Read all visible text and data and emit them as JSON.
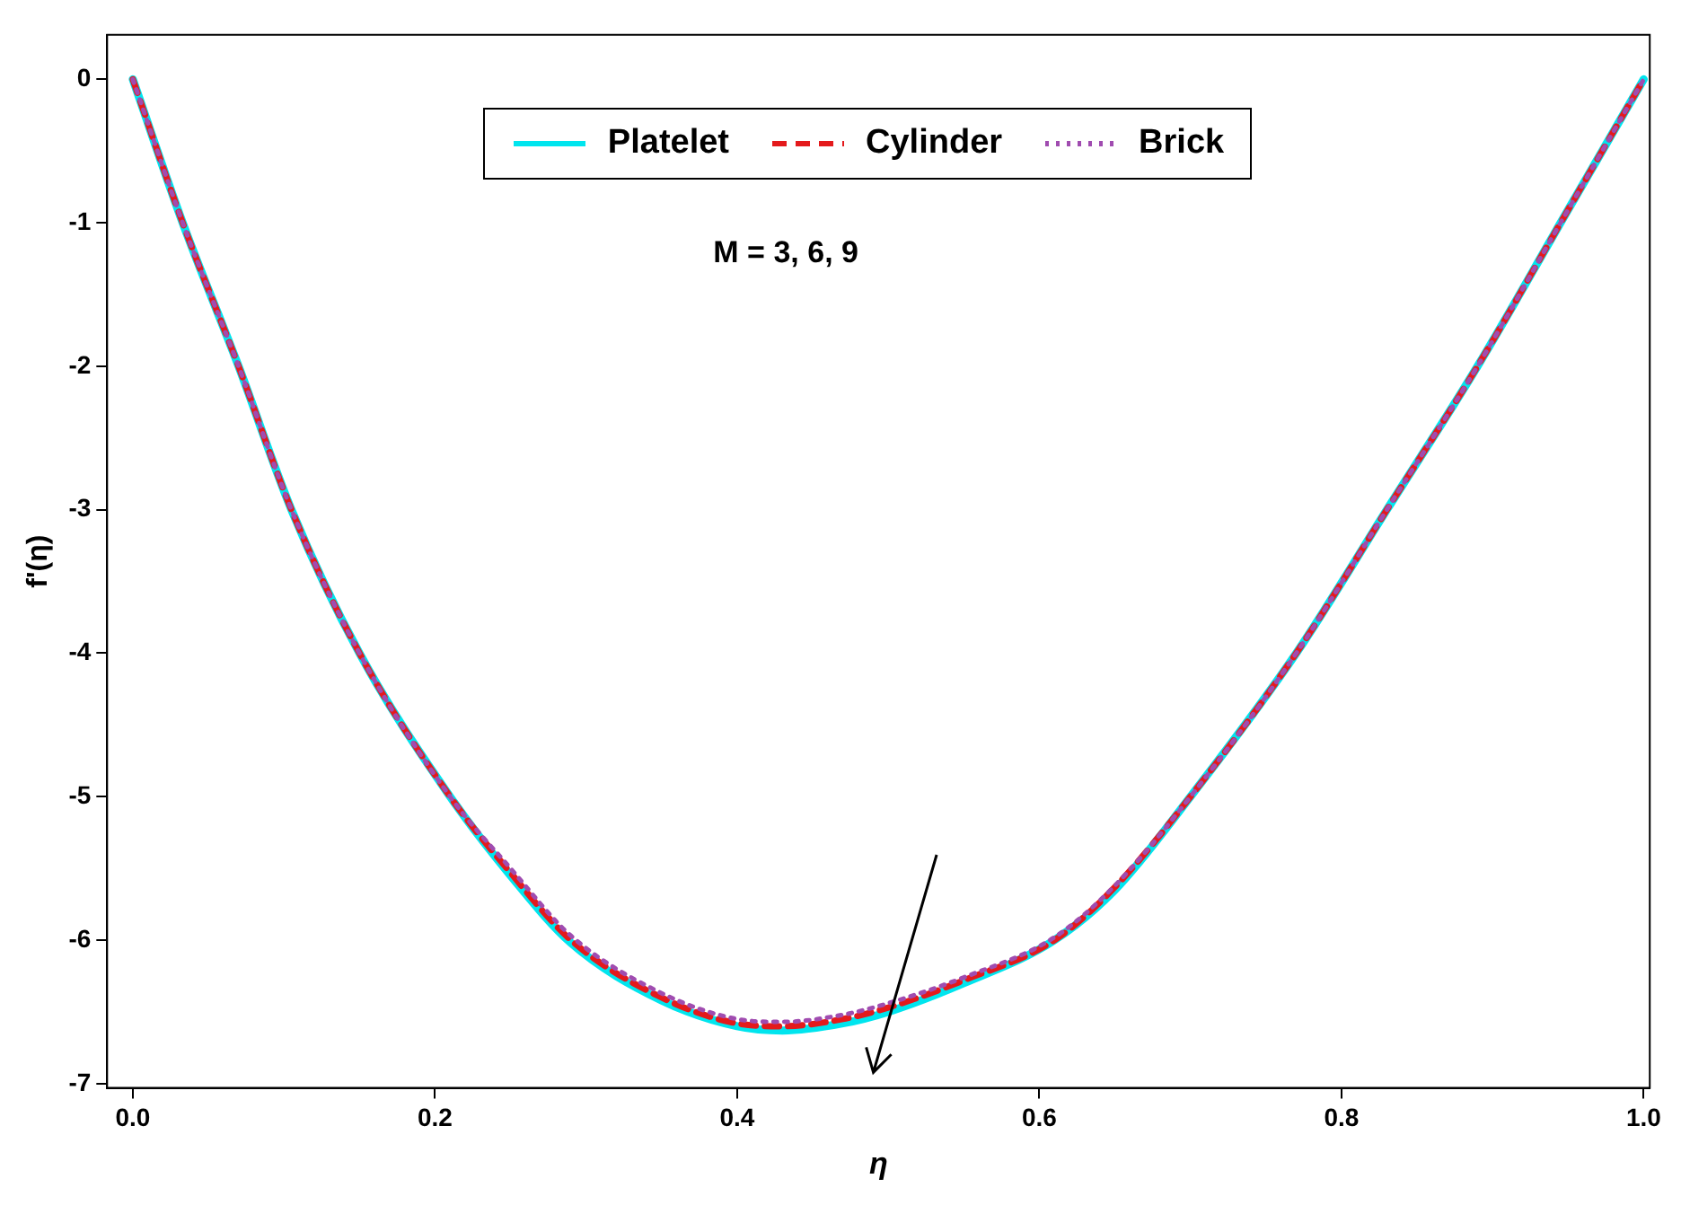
{
  "chart_data": {
    "type": "line",
    "xlabel": "η",
    "ylabel": "f'(η)",
    "annotations": [
      "M = 3, 6, 9"
    ],
    "x": [
      0,
      0.033,
      0.07,
      0.105,
      0.15,
      0.21,
      0.25,
      0.29,
      0.35,
      0.4,
      0.43,
      0.47,
      0.5,
      0.55,
      0.61,
      0.65,
      0.7,
      0.77,
      0.83,
      0.89,
      0.945,
      1
    ],
    "series": [
      {
        "name": "Platelet",
        "color": "#00e5ee",
        "line_style": "solid",
        "values": [
          0,
          -1,
          -2,
          -3,
          -4,
          -5,
          -5.55,
          -6.02,
          -6.42,
          -6.6,
          -6.63,
          -6.58,
          -6.5,
          -6.3,
          -6,
          -5.65,
          -5,
          -4,
          -3,
          -2,
          -1,
          0
        ]
      },
      {
        "name": "Cylinder",
        "color": "#e41a1c",
        "line_style": "dashed",
        "values": [
          0,
          -1,
          -2,
          -3,
          -4,
          -5,
          -5.53,
          -6,
          -6.4,
          -6.58,
          -6.6,
          -6.55,
          -6.47,
          -6.28,
          -6,
          -5.63,
          -5,
          -4,
          -3,
          -2,
          -1,
          0
        ]
      },
      {
        "name": "Brick",
        "color": "#a04cb0",
        "line_style": "dotted",
        "values": [
          0,
          -1,
          -2,
          -3,
          -4,
          -5,
          -5.5,
          -5.97,
          -6.37,
          -6.55,
          -6.57,
          -6.52,
          -6.44,
          -6.26,
          -5.98,
          -5.62,
          -5,
          -4,
          -3,
          -2,
          -1,
          0
        ]
      }
    ],
    "xlim": [
      -0.017,
      1.004
    ],
    "xticks": [
      {
        "value": 0,
        "label": "0.0"
      },
      0.2,
      0.4,
      0.6,
      0.8,
      {
        "value": 1,
        "label": "1.0"
      }
    ],
    "ylim": [
      -7.03,
      0.31
    ],
    "yticks": [
      -7,
      -6,
      -5,
      -4,
      -3,
      -2,
      -1,
      0
    ],
    "grid": false,
    "legend": "top",
    "marker": "none"
  }
}
